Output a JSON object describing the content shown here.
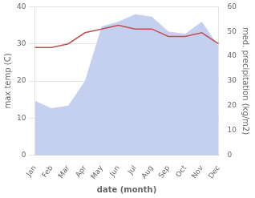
{
  "chart_data": {
    "type": "line",
    "xlabel": "date (month)",
    "ylabel": "max temp (C)",
    "y2label": "med. precipitation (kg/m2)",
    "categories": [
      "Jan",
      "Feb",
      "Mar",
      "Apr",
      "May",
      "Jun",
      "Jul",
      "Aug",
      "Sep",
      "Oct",
      "Nov",
      "Dec"
    ],
    "series": [
      {
        "type": "area",
        "axis": "y2",
        "color": "#c5cff0",
        "values": [
          22,
          19,
          20,
          30,
          52,
          54,
          57,
          56,
          50,
          49,
          54,
          44
        ]
      },
      {
        "type": "line",
        "color": "#c0504d",
        "values": [
          29,
          29,
          30,
          33,
          34,
          35,
          34,
          34,
          32,
          32,
          33,
          30
        ]
      }
    ],
    "ylim": [
      0,
      40
    ],
    "yticks": [
      0,
      10,
      20,
      30,
      40
    ],
    "y2lim": [
      0,
      60
    ],
    "y2ticks": [
      0,
      10,
      20,
      30,
      40,
      50,
      60
    ],
    "grid": true
  }
}
